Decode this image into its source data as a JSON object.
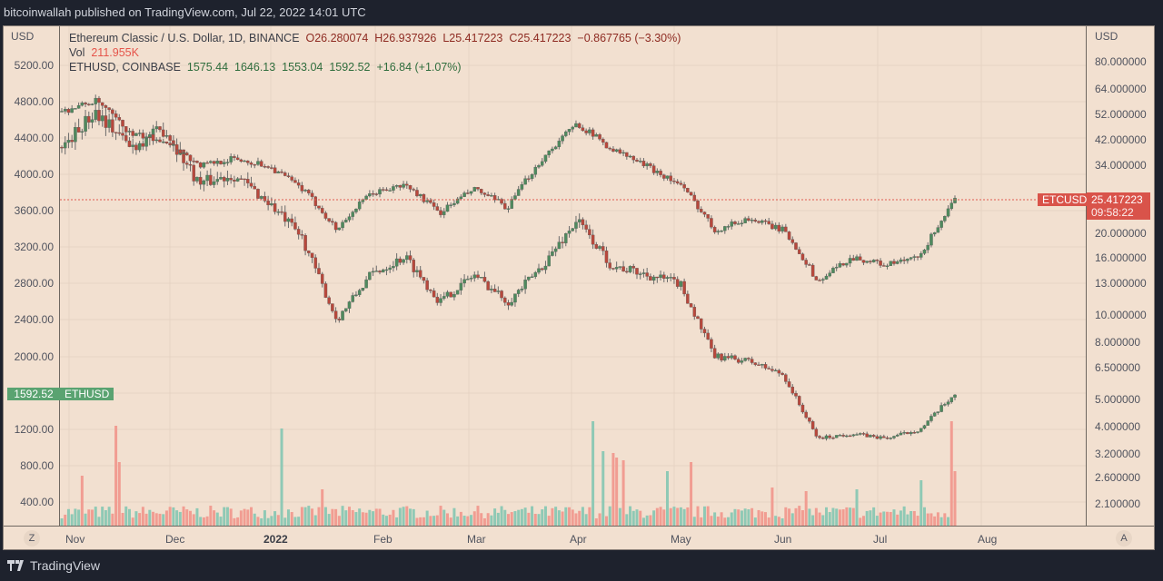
{
  "header": {
    "published": "bitcoinwallah published on TradingView.com, Jul 22, 2022 14:01 UTC"
  },
  "legend": {
    "etc_title": "Ethereum Classic / U.S. Dollar, 1D, BINANCE",
    "etc_o": "O26.280074",
    "etc_h": "H26.937926",
    "etc_l": "L25.417223",
    "etc_c": "C25.417223",
    "etc_change": "−0.867765 (−3.30%)",
    "vol_label": "Vol",
    "vol_value": "211.955K",
    "eth_title": "ETHUSD, COINBASE",
    "eth_o": "1575.44",
    "eth_h": "1646.13",
    "eth_l": "1553.04",
    "eth_c": "1592.52",
    "eth_change": "+16.84 (+1.07%)"
  },
  "left_axis": {
    "unit": "USD",
    "labels": [
      "5200.00",
      "4800.00",
      "4400.00",
      "4000.00",
      "3600.00",
      "3200.00",
      "2800.00",
      "2400.00",
      "2000.00",
      "1200.00",
      "800.00",
      "400.00"
    ],
    "zoom_button": "Z"
  },
  "right_axis": {
    "unit": "USD",
    "labels": [
      "80.000000",
      "64.000000",
      "52.000000",
      "42.000000",
      "34.000000",
      "20.000000",
      "16.000000",
      "13.000000",
      "10.000000",
      "8.000000",
      "6.500000",
      "5.000000",
      "4.000000",
      "3.200000",
      "2.600000",
      "2.100000"
    ],
    "auto_button": "A"
  },
  "time_axis": {
    "labels": [
      "Nov",
      "Dec",
      "2022",
      "Feb",
      "Mar",
      "Apr",
      "May",
      "Jun",
      "Jul",
      "Aug"
    ]
  },
  "tags": {
    "etc_symbol": "ETCUSD",
    "etc_price": "25.417223",
    "etc_countdown": "09:58:22",
    "eth_price": "1592.52",
    "eth_symbol": "ETHUSD"
  },
  "colors": {
    "up": "#4f8a5e",
    "down": "#b8483c",
    "vol_up": "#8fc9b5",
    "vol_down": "#f19d92",
    "last_price_line": "#e05a4f",
    "background": "#f2e0d0"
  },
  "footer": {
    "brand": "TradingView"
  },
  "chart_data": {
    "type": "candlestick",
    "title": "Ethereum Classic / U.S. Dollar, 1D, BINANCE with ETHUSD (COINBASE) overlay",
    "xlabel": "",
    "ylabel_left": "USD (ETHUSD)",
    "ylabel_right": "USD (ETCUSD, log)",
    "x_range": [
      "2021-10-28",
      "2022-07-22"
    ],
    "series": [
      {
        "name": "ETCUSD (BINANCE)",
        "axis": "right",
        "scale": "log",
        "approx_close": [
          [
            "Nov",
            53
          ],
          [
            "mid-Nov",
            58
          ],
          [
            "late-Nov",
            44
          ],
          [
            "Dec",
            42
          ],
          [
            "mid-Dec",
            34
          ],
          [
            "late-Dec",
            36
          ],
          [
            "Jan",
            34
          ],
          [
            "mid-Jan",
            28
          ],
          [
            "late-Jan",
            20
          ],
          [
            "Feb",
            27
          ],
          [
            "mid-Feb",
            29
          ],
          [
            "late-Feb",
            23
          ],
          [
            "Mar",
            28
          ],
          [
            "mid-Mar",
            24
          ],
          [
            "late-Mar",
            36
          ],
          [
            "Apr",
            48
          ],
          [
            "mid-Apr",
            39
          ],
          [
            "late-Apr",
            34
          ],
          [
            "May",
            29
          ],
          [
            "mid-May",
            20
          ],
          [
            "late-May",
            22
          ],
          [
            "Jun",
            20
          ],
          [
            "mid-Jun",
            13
          ],
          [
            "late-Jun",
            16
          ],
          [
            "Jul",
            15
          ],
          [
            "mid-Jul",
            16
          ],
          [
            "Jul 22",
            25.42
          ]
        ],
        "last": 25.417223
      },
      {
        "name": "ETHUSD (COINBASE)",
        "axis": "left",
        "approx_close": [
          [
            "Nov",
            4300
          ],
          [
            "mid-Nov",
            4700
          ],
          [
            "late-Nov",
            4300
          ],
          [
            "Dec",
            4500
          ],
          [
            "mid-Dec",
            3900
          ],
          [
            "late-Dec",
            4000
          ],
          [
            "Jan",
            3700
          ],
          [
            "mid-Jan",
            3300
          ],
          [
            "late-Jan",
            2400
          ],
          [
            "Feb",
            2900
          ],
          [
            "mid-Feb",
            3100
          ],
          [
            "late-Feb",
            2600
          ],
          [
            "Mar",
            2900
          ],
          [
            "mid-Mar",
            2600
          ],
          [
            "late-Mar",
            3000
          ],
          [
            "Apr",
            3500
          ],
          [
            "mid-Apr",
            3000
          ],
          [
            "late-Apr",
            2900
          ],
          [
            "May",
            2800
          ],
          [
            "mid-May",
            2000
          ],
          [
            "late-May",
            1950
          ],
          [
            "Jun",
            1800
          ],
          [
            "mid-Jun",
            1100
          ],
          [
            "late-Jun",
            1150
          ],
          [
            "Jul",
            1100
          ],
          [
            "mid-Jul",
            1200
          ],
          [
            "Jul 22",
            1592.52
          ]
        ],
        "last": 1592.52
      },
      {
        "name": "Volume",
        "axis": "left-lower",
        "type": "bar",
        "last": "211.955K"
      }
    ],
    "ylim_left": [
      0,
      5400
    ],
    "grid": true
  }
}
